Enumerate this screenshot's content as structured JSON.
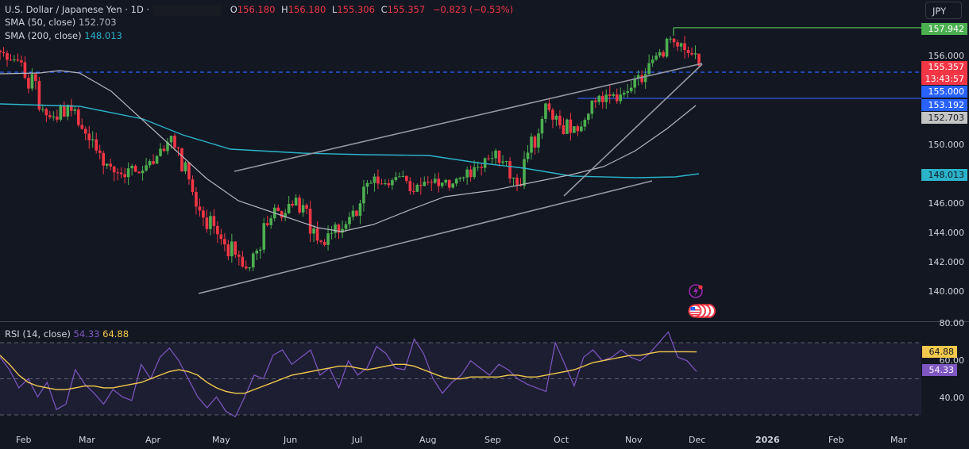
{
  "header": {
    "symbol": "U.S. Dollar / Japanese Yen · 1D ·",
    "ohlc": {
      "open_k": "O",
      "open": "156.180",
      "high_k": "H",
      "high": "156.180",
      "low_k": "L",
      "low": "155.306",
      "close_k": "C",
      "close": "155.357",
      "change": "−0.823 (−0.53%)"
    },
    "sma50": {
      "label": "SMA (50, close)",
      "value": "152.703"
    },
    "sma200": {
      "label": "SMA (200, close)",
      "value": "148.013"
    },
    "currency_button": "JPY"
  },
  "rsi_legend": {
    "label": "RSI (14, close)",
    "rsi": "54.33",
    "ma": "64.88"
  },
  "price_axis": {
    "ticks": [
      "156.000",
      "150.000",
      "146.000",
      "144.000",
      "142.000",
      "140.000"
    ],
    "tags": {
      "high_line": "157.942",
      "last_price": "155.357",
      "countdown": "13:43:57",
      "level_dashed": "155.000",
      "level_solid": "153.192",
      "sma50": "152.703",
      "sma200": "148.013"
    }
  },
  "rsi_axis": {
    "ticks": [
      "80.00",
      "60.00",
      "40.00"
    ],
    "tags": {
      "ma": "64.88",
      "rsi": "54.33"
    }
  },
  "time_axis": {
    "labels": [
      "Feb",
      "Mar",
      "Apr",
      "May",
      "Jun",
      "Jul",
      "Aug",
      "Sep",
      "Oct",
      "Nov",
      "Dec",
      "2026",
      "Feb",
      "Mar"
    ]
  },
  "colors": {
    "background": "#131722",
    "up": "#4caf50",
    "down": "#f23645",
    "sma50": "#b2b5be",
    "sma200": "#2bb3c9",
    "rsi": "#7e57c2",
    "rsi_ma": "#f2c94c",
    "trendline": "#9598a1",
    "high_line": "#4caf50",
    "level_line": "#2962ff"
  },
  "chart_data": [
    {
      "type": "candlestick",
      "title": "U.S. Dollar / Japanese Yen · 1D",
      "xlabel": "",
      "ylabel": "JPY",
      "ylim": [
        139.0,
        159.0
      ],
      "x_range": [
        "2025-01-20",
        "2026-03-31"
      ],
      "last": {
        "open": 156.18,
        "high": 156.18,
        "low": 155.306,
        "close": 155.357,
        "change": -0.823,
        "change_pct": -0.53
      },
      "candles_weekly_approx": [
        {
          "x": "Jan W4",
          "o": 156.4,
          "h": 157.0,
          "l": 154.8,
          "c": 155.6
        },
        {
          "x": "Feb W1",
          "o": 155.6,
          "h": 156.0,
          "l": 151.2,
          "c": 152.0
        },
        {
          "x": "Feb W2",
          "o": 152.0,
          "h": 154.8,
          "l": 151.5,
          "c": 152.3
        },
        {
          "x": "Feb W3",
          "o": 152.3,
          "h": 152.6,
          "l": 149.4,
          "c": 149.6
        },
        {
          "x": "Mar W1",
          "o": 149.6,
          "h": 150.0,
          "l": 146.6,
          "c": 148.0
        },
        {
          "x": "Mar W2",
          "o": 148.0,
          "h": 149.2,
          "l": 147.0,
          "c": 148.6
        },
        {
          "x": "Mar W4",
          "o": 148.6,
          "h": 151.2,
          "l": 148.2,
          "c": 150.6
        },
        {
          "x": "Apr W1",
          "o": 150.6,
          "h": 150.8,
          "l": 144.6,
          "c": 145.8
        },
        {
          "x": "Apr W2",
          "o": 145.8,
          "h": 147.6,
          "l": 143.2,
          "c": 143.6
        },
        {
          "x": "Apr W3",
          "o": 143.6,
          "h": 144.0,
          "l": 139.9,
          "c": 141.6
        },
        {
          "x": "May W1",
          "o": 141.6,
          "h": 145.4,
          "l": 141.4,
          "c": 145.0
        },
        {
          "x": "May W2",
          "o": 145.0,
          "h": 148.6,
          "l": 144.8,
          "c": 146.4
        },
        {
          "x": "May W4",
          "o": 146.4,
          "h": 146.8,
          "l": 142.4,
          "c": 143.4
        },
        {
          "x": "Jun W2",
          "o": 143.4,
          "h": 145.6,
          "l": 142.6,
          "c": 144.6
        },
        {
          "x": "Jul W1",
          "o": 144.6,
          "h": 147.6,
          "l": 142.8,
          "c": 147.4
        },
        {
          "x": "Jul W3",
          "o": 147.4,
          "h": 149.2,
          "l": 146.4,
          "c": 147.8
        },
        {
          "x": "Aug W1",
          "o": 147.8,
          "h": 150.9,
          "l": 146.6,
          "c": 147.2
        },
        {
          "x": "Aug W3",
          "o": 147.2,
          "h": 148.2,
          "l": 146.4,
          "c": 147.6
        },
        {
          "x": "Sep W2",
          "o": 147.6,
          "h": 149.0,
          "l": 145.5,
          "c": 147.8
        },
        {
          "x": "Sep W4",
          "o": 147.8,
          "h": 150.0,
          "l": 147.0,
          "c": 149.6
        },
        {
          "x": "Oct W1",
          "o": 149.6,
          "h": 150.2,
          "l": 146.7,
          "c": 147.2
        },
        {
          "x": "Oct W2",
          "o": 147.2,
          "h": 153.3,
          "l": 147.0,
          "c": 152.8
        },
        {
          "x": "Oct W3",
          "o": 152.8,
          "h": 153.3,
          "l": 149.6,
          "c": 150.8
        },
        {
          "x": "Oct W4",
          "o": 150.8,
          "h": 153.2,
          "l": 150.4,
          "c": 152.9
        },
        {
          "x": "Nov W1",
          "o": 152.9,
          "h": 154.6,
          "l": 152.4,
          "c": 153.4
        },
        {
          "x": "Nov W2",
          "o": 153.4,
          "h": 155.2,
          "l": 153.2,
          "c": 154.8
        },
        {
          "x": "Nov W3",
          "o": 154.8,
          "h": 157.942,
          "l": 154.6,
          "c": 157.2
        },
        {
          "x": "Nov W4",
          "o": 157.2,
          "h": 157.6,
          "l": 155.8,
          "c": 156.2
        },
        {
          "x": "Dec 1",
          "o": 156.18,
          "h": 156.18,
          "l": 155.306,
          "c": 155.357
        }
      ],
      "overlays": [
        {
          "name": "SMA (50, close)",
          "last": 152.703
        },
        {
          "name": "SMA (200, close)",
          "last": 148.013
        },
        {
          "name": "Horizontal high",
          "value": 157.942
        },
        {
          "name": "Horizontal dashed level",
          "value": 155.0
        },
        {
          "name": "Horizontal solid level",
          "value": 153.192
        },
        {
          "name": "Ascending channel",
          "lower_start": [
            "Apr 22",
            139.9
          ],
          "lower_end": [
            "Nov 28",
            147.5
          ],
          "upper_start": [
            "May 12",
            148.5
          ],
          "upper_end": [
            "Dec 3",
            155.7
          ]
        },
        {
          "name": "Rising support trendline",
          "start": [
            "Oct 1",
            146.6
          ],
          "end": [
            "Dec 3",
            155.7
          ]
        }
      ],
      "y_ticks": [
        140,
        142,
        144,
        146,
        150,
        156
      ]
    },
    {
      "type": "line",
      "title": "RSI (14, close)",
      "ylim": [
        20,
        80
      ],
      "y_ticks": [
        40,
        60,
        80
      ],
      "bands": [
        30,
        50,
        70
      ],
      "series": [
        {
          "name": "RSI",
          "last": 54.33,
          "values": [
            62,
            55,
            45,
            50,
            40,
            48,
            33,
            36,
            55,
            47,
            42,
            36,
            44,
            40,
            38,
            58,
            50,
            62,
            67,
            60,
            50,
            40,
            34,
            40,
            32,
            29,
            40,
            52,
            50,
            63,
            66,
            58,
            62,
            66,
            52,
            56,
            45,
            60,
            52,
            56,
            68,
            64,
            56,
            55,
            72,
            64,
            50,
            42,
            48,
            52,
            60,
            56,
            52,
            58,
            55,
            50,
            47,
            45,
            43,
            70,
            58,
            46,
            62,
            66,
            60,
            62,
            66,
            62,
            60,
            64,
            70,
            76,
            62,
            60,
            54
          ]
        },
        {
          "name": "RSI-based MA",
          "last": 64.88,
          "values": [
            63,
            58,
            52,
            48,
            46,
            45,
            44,
            44,
            45,
            46,
            46,
            45,
            45,
            46,
            47,
            48,
            50,
            52,
            54,
            55,
            54,
            52,
            48,
            45,
            43,
            42,
            42,
            44,
            46,
            48,
            50,
            52,
            53,
            54,
            55,
            56,
            57,
            57,
            56,
            55,
            56,
            57,
            58,
            58,
            57,
            55,
            53,
            51,
            50,
            50,
            51,
            51,
            51,
            51,
            52,
            52,
            51,
            51,
            52,
            53,
            54,
            55,
            57,
            59,
            60,
            61,
            62,
            63,
            63,
            64,
            65,
            65,
            65,
            65,
            64.88
          ]
        }
      ],
      "x_range": [
        "2025-01-20",
        "2025-12-03"
      ]
    }
  ]
}
